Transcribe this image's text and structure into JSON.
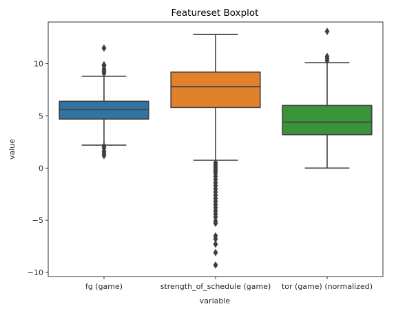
{
  "chart_data": {
    "type": "boxplot",
    "title": "Featureset Boxplot",
    "xlabel": "variable",
    "ylabel": "value",
    "ylim": [
      -10.4,
      14.0
    ],
    "yticks": [
      -10,
      -5,
      0,
      5,
      10
    ],
    "ytick_labels": [
      "−10",
      "−5",
      "0",
      "5",
      "10"
    ],
    "grid": false,
    "legend": "none",
    "categories": [
      "fg (game)",
      "strength_of_schedule (game)",
      "tor (game) (normalized)"
    ],
    "boxes": [
      {
        "category": "fg (game)",
        "color": "#3274a1",
        "whisker_low": 2.2,
        "q1": 4.7,
        "median": 5.6,
        "q3": 6.4,
        "whisker_high": 8.8,
        "outliers": [
          1.2,
          1.4,
          1.6,
          1.9,
          2.1,
          9.1,
          9.3,
          9.5,
          9.8,
          9.9,
          11.5
        ]
      },
      {
        "category": "strength_of_schedule (game)",
        "color": "#e1812c",
        "whisker_low": 0.75,
        "q1": 5.8,
        "median": 7.8,
        "q3": 9.2,
        "whisker_high": 12.8,
        "outliers": [
          0.5,
          0.3,
          0.1,
          -0.1,
          -0.3,
          -0.5,
          -0.8,
          -1.1,
          -1.4,
          -1.7,
          -2.0,
          -2.3,
          -2.6,
          -2.9,
          -3.2,
          -3.5,
          -3.8,
          -4.1,
          -4.4,
          -4.7,
          -5.1,
          -5.3,
          -6.5,
          -6.8,
          -7.3,
          -8.1,
          -9.3
        ]
      },
      {
        "category": "tor (game) (normalized)",
        "color": "#3a923a",
        "whisker_low": 0.0,
        "q1": 3.2,
        "median": 4.4,
        "q3": 6.0,
        "whisker_high": 10.1,
        "outliers": [
          10.3,
          10.5,
          10.7,
          13.1
        ]
      }
    ]
  }
}
